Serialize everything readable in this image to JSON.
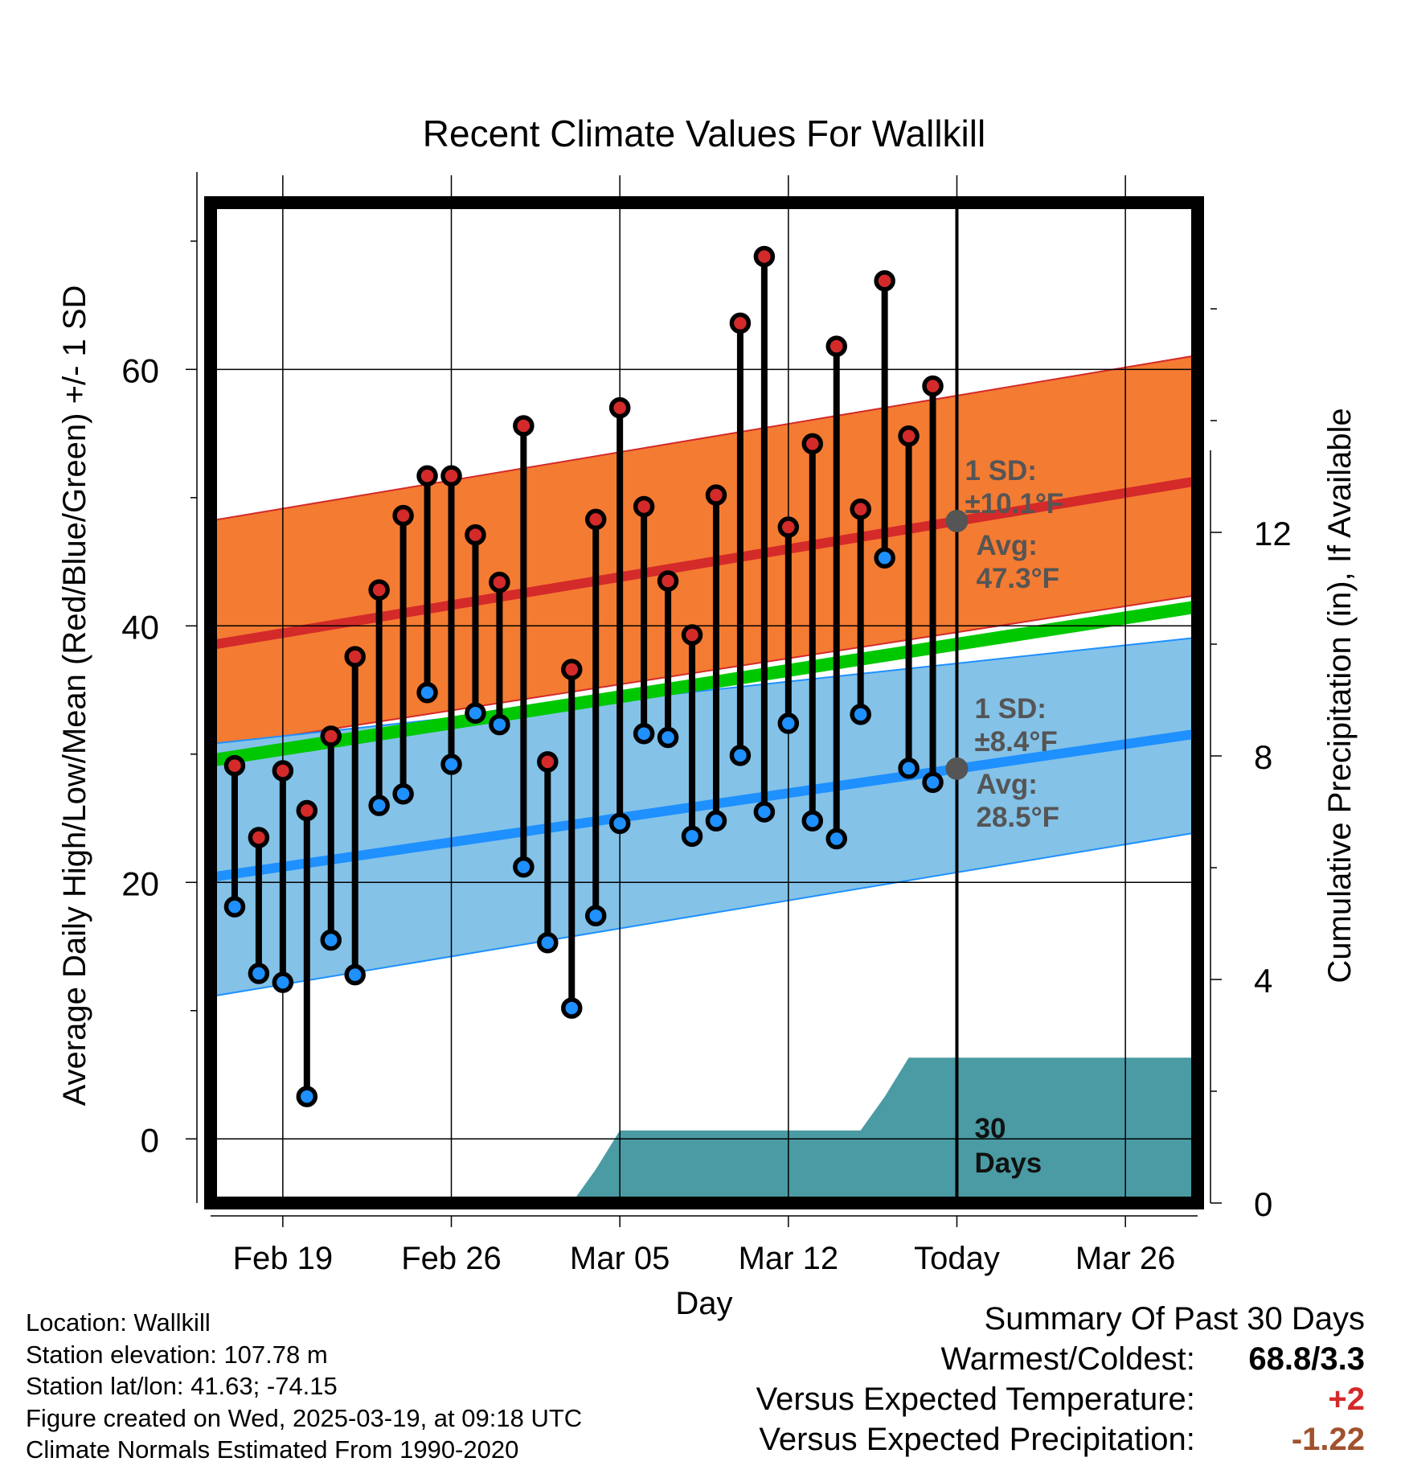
{
  "chart_data": {
    "type": "line",
    "title": "Recent Climate Values For Wallkill",
    "xlabel": "Day",
    "ylabel": "Average Daily High/Low/Mean (Red/Blue/Green) +/- 1 SD",
    "y2label": "Cumulative Precipitation (in), If Available",
    "x_ticks": [
      "Feb 19",
      "Feb 26",
      "Mar 05",
      "Mar 12",
      "Today",
      "Mar 26"
    ],
    "x_tick_dates": [
      "2025-02-19",
      "2025-02-26",
      "2025-03-05",
      "2025-03-12",
      "2025-03-19",
      "2025-03-26"
    ],
    "xlim": [
      "2025-02-16",
      "2025-03-29"
    ],
    "ylim": [
      -5,
      73
    ],
    "y_ticks": [
      0,
      20,
      40,
      60
    ],
    "y2lim": [
      0,
      17.9
    ],
    "y2_ticks": [
      0,
      4,
      8,
      12
    ],
    "grid": true,
    "today": "2025-03-19",
    "daily": {
      "dates": [
        "2025-02-17",
        "2025-02-18",
        "2025-02-19",
        "2025-02-20",
        "2025-02-21",
        "2025-02-22",
        "2025-02-23",
        "2025-02-24",
        "2025-02-25",
        "2025-02-26",
        "2025-02-27",
        "2025-02-28",
        "2025-03-01",
        "2025-03-02",
        "2025-03-03",
        "2025-03-04",
        "2025-03-05",
        "2025-03-06",
        "2025-03-07",
        "2025-03-08",
        "2025-03-09",
        "2025-03-10",
        "2025-03-11",
        "2025-03-12",
        "2025-03-13",
        "2025-03-14",
        "2025-03-15",
        "2025-03-16",
        "2025-03-17",
        "2025-03-18"
      ],
      "high": [
        29.1,
        23.5,
        28.7,
        25.6,
        31.4,
        37.6,
        42.8,
        48.6,
        51.7,
        51.7,
        47.1,
        43.4,
        55.6,
        29.4,
        36.6,
        48.3,
        57.0,
        49.3,
        43.5,
        39.3,
        50.2,
        63.6,
        68.8,
        47.7,
        54.2,
        61.8,
        49.1,
        66.9,
        54.8,
        58.7
      ],
      "low": [
        18.1,
        12.9,
        12.2,
        3.3,
        15.5,
        12.8,
        26.0,
        26.9,
        34.8,
        29.2,
        33.2,
        32.3,
        21.2,
        15.3,
        10.2,
        17.4,
        24.6,
        31.6,
        31.3,
        23.6,
        24.8,
        29.9,
        25.5,
        32.4,
        24.8,
        23.4,
        33.1,
        45.3,
        28.9,
        27.8
      ]
    },
    "normals": {
      "dates": [
        "2025-02-16",
        "2025-03-29"
      ],
      "avg_high": [
        38.5,
        51.3
      ],
      "avg_low": [
        20.4,
        31.6
      ],
      "avg_mean": [
        29.5,
        41.5
      ],
      "high_sd_band": [
        [
          30.5,
          48.2
        ],
        [
          42.4,
          61.1
        ]
      ],
      "low_sd_band": [
        [
          11.1,
          30.8
        ],
        [
          23.9,
          39.1
        ]
      ]
    },
    "precip_cumulative": {
      "dates": [
        "2025-02-16",
        "2025-03-03",
        "2025-03-04",
        "2025-03-05",
        "2025-03-15",
        "2025-03-16",
        "2025-03-17",
        "2025-03-29"
      ],
      "values": [
        0,
        0,
        0.6,
        1.3,
        1.3,
        1.9,
        2.6,
        2.6
      ]
    },
    "annotations": {
      "high_sd": "1 SD:",
      "high_sd_value": "±10.1°F",
      "high_avg": "Avg:",
      "high_avg_value": "47.3°F",
      "low_sd": "1 SD:",
      "low_sd_value": "±8.4°F",
      "low_avg": "Avg:",
      "low_avg_value": "28.5°F",
      "precip_label": "30 Days"
    },
    "colors": {
      "high": "#d42a2a",
      "low": "#1e90ff",
      "mean": "#00c800",
      "high_band": "#f47b32",
      "low_band": "#84c2e8",
      "precip": "#4a9ba3",
      "annotation": "#555555"
    }
  },
  "station_info": [
    "Location: Wallkill",
    "Station elevation: 107.78 m",
    "Station lat/lon: 41.63; -74.15",
    "Figure created on Wed, 2025-03-19, at 09:18 UTC",
    "Climate Normals Estimated From 1990-2020"
  ],
  "summary": {
    "title": "Summary Of Past 30 Days",
    "warmest_coldest_label": "Warmest/Coldest:",
    "warmest_coldest_value": "68.8/3.3",
    "temp_label": "Versus Expected Temperature:",
    "temp_value": "+2",
    "precip_label": "Versus Expected Precipitation:",
    "precip_value": "-1.22",
    "temp_color": "#d42a2a",
    "precip_color": "#a0522d"
  }
}
